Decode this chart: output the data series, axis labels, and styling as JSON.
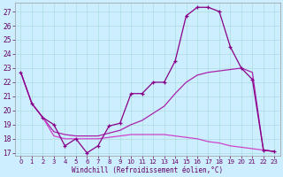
{
  "xlabel": "Windchill (Refroidissement éolien,°C)",
  "background_color": "#cceeff",
  "grid_color": "#aadddd",
  "line_color1": "#880088",
  "line_color2": "#aa22aa",
  "line_color3": "#cc44cc",
  "ylim": [
    16.8,
    27.6
  ],
  "xlim": [
    -0.5,
    23.5
  ],
  "yticks": [
    17,
    18,
    19,
    20,
    21,
    22,
    23,
    24,
    25,
    26,
    27
  ],
  "xticks": [
    0,
    1,
    2,
    3,
    4,
    5,
    6,
    7,
    8,
    9,
    10,
    11,
    12,
    13,
    14,
    15,
    16,
    17,
    18,
    19,
    20,
    21,
    22,
    23
  ],
  "line1_x": [
    0,
    1,
    2,
    3,
    4,
    5,
    6,
    7,
    8,
    9,
    10,
    11,
    12,
    13,
    14,
    15,
    16,
    17,
    18,
    19,
    20,
    21,
    22,
    23
  ],
  "line1_y": [
    22.7,
    20.5,
    19.5,
    19.0,
    17.5,
    18.0,
    17.0,
    17.5,
    18.9,
    19.1,
    21.2,
    21.2,
    22.0,
    22.0,
    23.5,
    26.7,
    27.3,
    27.3,
    27.0,
    24.5,
    23.0,
    22.2,
    17.2,
    17.1
  ],
  "line2_x": [
    0,
    1,
    2,
    3,
    4,
    5,
    6,
    7,
    8,
    9,
    10,
    11,
    12,
    13,
    14,
    15,
    16,
    17,
    18,
    19,
    20,
    21,
    22,
    23
  ],
  "line2_y": [
    22.7,
    20.5,
    19.5,
    18.5,
    18.3,
    18.2,
    18.2,
    18.2,
    18.4,
    18.6,
    19.0,
    19.3,
    19.8,
    20.3,
    21.2,
    22.0,
    22.5,
    22.7,
    22.8,
    22.9,
    23.0,
    22.7,
    17.2,
    17.1
  ],
  "line3_x": [
    0,
    1,
    2,
    3,
    4,
    5,
    6,
    7,
    8,
    9,
    10,
    11,
    12,
    13,
    14,
    15,
    16,
    17,
    18,
    19,
    20,
    21,
    22,
    23
  ],
  "line3_y": [
    22.7,
    20.5,
    19.5,
    18.2,
    18.0,
    18.0,
    18.0,
    18.0,
    18.1,
    18.2,
    18.3,
    18.3,
    18.3,
    18.3,
    18.2,
    18.1,
    18.0,
    17.8,
    17.7,
    17.5,
    17.4,
    17.3,
    17.2,
    17.1
  ]
}
